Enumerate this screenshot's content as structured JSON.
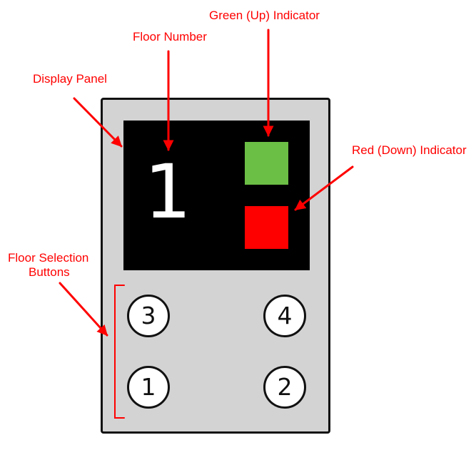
{
  "labels": {
    "display_panel": "Display Panel",
    "floor_number": "Floor Number",
    "up_indicator": "Green (Up) Indicator",
    "down_indicator": "Red (Down) Indicator",
    "floor_buttons_line1": "Floor Selection",
    "floor_buttons_line2": "Buttons"
  },
  "display": {
    "floor": "1"
  },
  "indicators": {
    "up_color": "#6cbf45",
    "down_color": "#ff0000"
  },
  "buttons": [
    "3",
    "4",
    "1",
    "2"
  ],
  "colors": {
    "annotation": "#ff0000",
    "panel": "#d3d3d3",
    "screen": "#000000"
  }
}
